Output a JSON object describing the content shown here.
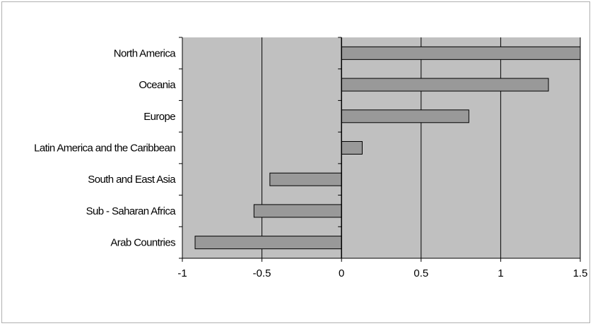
{
  "chart_data": {
    "type": "bar",
    "orientation": "horizontal",
    "categories": [
      "North America",
      "Oceania",
      "Europe",
      "Latin America and the Caribbean",
      "South and East Asia",
      "Sub - Saharan Africa",
      "Arab Countries"
    ],
    "values": [
      1.5,
      1.3,
      0.8,
      0.13,
      -0.45,
      -0.55,
      -0.92
    ],
    "xlim": [
      -1,
      1.5
    ],
    "x_ticks": [
      -1,
      -0.5,
      0,
      0.5,
      1,
      1.5
    ],
    "x_tick_labels": [
      "-1",
      "-0.5",
      "0",
      "0.5",
      "1",
      "1.5"
    ],
    "grid": "vertical",
    "title": "",
    "xlabel": "",
    "ylabel": "",
    "colors": {
      "plot_background": "#c0c0c0",
      "bar_fill": "#999999",
      "bar_stroke": "#000000",
      "axis": "#000000"
    }
  }
}
